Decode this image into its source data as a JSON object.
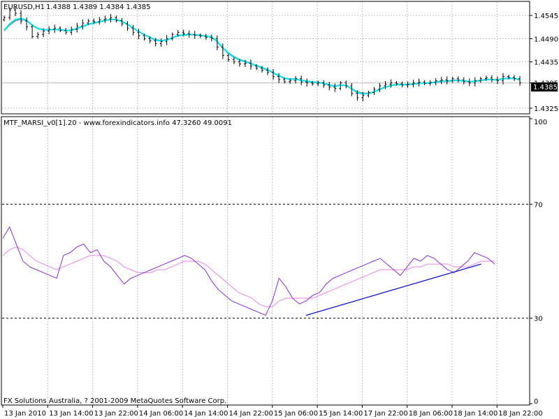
{
  "symbol_label": "EURUSD,H1",
  "ohlc_label": "1.4388 1.4389 1.4384 1.4385",
  "indicator_label": "MTF_MARSI_v0[1].20 - www.forexindicators.info 47.3260 49.0091",
  "copyright": "FX Solutions Australia, ? 2001-2009 MetaQuotes Software Corp.",
  "current_price": "1.4385",
  "colors": {
    "background": "#ffffff",
    "candle": "#000000",
    "ma_fast": "#00e5ee",
    "ma_slow": "#6b6b6b",
    "rsi_line": "#8a2be2",
    "rsi_ma": "#ee82ee",
    "trendline": "#0000cd",
    "grid": "#c0c0c0"
  },
  "chart_data": [
    {
      "type": "candlestick",
      "symbol": "EURUSD",
      "timeframe": "H1",
      "ylim": [
        1.4315,
        1.4575
      ],
      "y_ticks": [
        "1.4545",
        "1.4490",
        "1.4435",
        "1.4385",
        "1.4325"
      ],
      "x_ticks": [
        "13 Jan 2010",
        "13 Jan 14:00",
        "13 Jan 22:00",
        "14 Jan 06:00",
        "14 Jan 14:00",
        "14 Jan 22:00",
        "15 Jan 06:00",
        "15 Jan 14:00",
        "17 Jan 22:00",
        "18 Jan 06:00",
        "18 Jan 14:00",
        "18 Jan 22:00"
      ],
      "grid": true,
      "close": [
        1.454,
        1.4558,
        1.455,
        1.4532,
        1.4518,
        1.4495,
        1.45,
        1.4508,
        1.4512,
        1.4515,
        1.451,
        1.4505,
        1.4512,
        1.452,
        1.4527,
        1.4532,
        1.453,
        1.4535,
        1.4537,
        1.454,
        1.4533,
        1.4525,
        1.4515,
        1.4505,
        1.4497,
        1.449,
        1.4485,
        1.4478,
        1.4483,
        1.449,
        1.45,
        1.4505,
        1.4502,
        1.45,
        1.4498,
        1.4496,
        1.4493,
        1.449,
        1.447,
        1.445,
        1.444,
        1.4435,
        1.443,
        1.4432,
        1.4425,
        1.442,
        1.4415,
        1.441,
        1.44,
        1.4393,
        1.4388,
        1.439,
        1.4395,
        1.4387,
        1.4385,
        1.4383,
        1.4385,
        1.438,
        1.4375,
        1.4372,
        1.4385,
        1.4378,
        1.436,
        1.435,
        1.4355,
        1.4362,
        1.437,
        1.4378,
        1.4382,
        1.4385,
        1.4383,
        1.438,
        1.4382,
        1.4385,
        1.4387,
        1.4384,
        1.4386,
        1.439,
        1.4392,
        1.439,
        1.4395,
        1.4392,
        1.4388,
        1.4385,
        1.439,
        1.4395,
        1.4397,
        1.4393,
        1.439,
        1.44,
        1.4398,
        1.4395,
        1.4385
      ],
      "series": [
        {
          "name": "MA fast",
          "values": [
            1.451,
            1.4525,
            1.4535,
            1.4538,
            1.4533,
            1.4522,
            1.4514,
            1.4511,
            1.4511,
            1.4512,
            1.4511,
            1.4509,
            1.451,
            1.4514,
            1.4519,
            1.4524,
            1.4527,
            1.453,
            1.4533,
            1.4536,
            1.4535,
            1.4531,
            1.4524,
            1.4515,
            1.4507,
            1.4499,
            1.4493,
            1.4486,
            1.4485,
            1.4487,
            1.4492,
            1.4497,
            1.4499,
            1.45,
            1.4499,
            1.4498,
            1.4496,
            1.4494,
            1.4483,
            1.4468,
            1.4455,
            1.4446,
            1.4439,
            1.4436,
            1.4431,
            1.4426,
            1.4421,
            1.4416,
            1.4409,
            1.4402,
            1.4396,
            1.4394,
            1.4394,
            1.4391,
            1.4389,
            1.4387,
            1.4386,
            1.4384,
            1.438,
            1.4377,
            1.438,
            1.4379,
            1.4371,
            1.4362,
            1.4359,
            1.436,
            1.4364,
            1.437,
            1.4375,
            1.4379,
            1.4381,
            1.4381,
            1.4381,
            1.4382,
            1.4384,
            1.4384,
            1.4385,
            1.4387,
            1.4389,
            1.4389,
            1.4391,
            1.4391,
            1.439,
            1.4388,
            1.4389,
            1.4391,
            1.4393,
            1.4393,
            1.4392,
            1.4395,
            1.4396,
            1.4396,
            1.4392
          ]
        },
        {
          "name": "MA slow",
          "values": [
            1.4508,
            1.4522,
            1.4532,
            1.4536,
            1.4532,
            1.4522,
            1.4515,
            1.4512,
            1.4512,
            1.4512,
            1.4511,
            1.4509,
            1.451,
            1.4513,
            1.4518,
            1.4523,
            1.4526,
            1.4529,
            1.4532,
            1.4535,
            1.4534,
            1.453,
            1.4523,
            1.4515,
            1.4507,
            1.45,
            1.4494,
            1.4488,
            1.4486,
            1.4487,
            1.4491,
            1.4496,
            1.4498,
            1.4499,
            1.4498,
            1.4497,
            1.4495,
            1.4493,
            1.4483,
            1.4469,
            1.4457,
            1.4448,
            1.4441,
            1.4437,
            1.4432,
            1.4427,
            1.4422,
            1.4417,
            1.441,
            1.4403,
            1.4397,
            1.4395,
            1.4395,
            1.4392,
            1.439,
            1.4388,
            1.4387,
            1.4385,
            1.4381,
            1.4378,
            1.438,
            1.4379,
            1.4372,
            1.4364,
            1.4361,
            1.4361,
            1.4364,
            1.4369,
            1.4374,
            1.4378,
            1.438,
            1.438,
            1.4381,
            1.4382,
            1.4383,
            1.4384,
            1.4384,
            1.4386,
            1.4388,
            1.4388,
            1.439,
            1.439,
            1.4389,
            1.4388,
            1.4388,
            1.439,
            1.4392,
            1.4392,
            1.4392,
            1.4394,
            1.4395,
            1.4395,
            1.4392
          ]
        }
      ]
    },
    {
      "type": "line",
      "title": "MTF_MARSI_v0[1].20",
      "ylim": [
        0,
        100
      ],
      "y_ticks": [
        "100",
        "70",
        "30",
        "0"
      ],
      "levels": [
        70,
        30
      ],
      "grid": true,
      "series": [
        {
          "name": "RSI",
          "values": [
            58,
            62,
            56,
            50,
            48,
            47,
            46,
            45,
            44,
            52,
            53,
            55,
            56,
            53,
            54,
            50,
            48,
            45,
            42,
            44,
            45,
            46,
            47,
            48,
            49,
            50,
            51,
            52,
            51,
            49,
            47,
            43,
            40,
            38,
            36,
            35,
            34,
            33,
            32,
            31,
            36,
            44,
            41,
            37,
            35,
            36,
            38,
            39,
            42,
            44,
            45,
            46,
            47,
            48,
            49,
            50,
            51,
            49,
            47,
            45,
            48,
            51,
            50,
            52,
            51,
            49,
            47,
            46,
            48,
            50,
            53,
            52,
            51,
            49
          ]
        },
        {
          "name": "RSI MA",
          "values": [
            52,
            54,
            55,
            54,
            52,
            50,
            49,
            48,
            47,
            48,
            49,
            50,
            51,
            52,
            52,
            52,
            51,
            50,
            48,
            47,
            46,
            46,
            46,
            47,
            47,
            48,
            49,
            50,
            50,
            50,
            49,
            47,
            45,
            43,
            41,
            39,
            38,
            37,
            35,
            34,
            34,
            36,
            37,
            37,
            37,
            37,
            37,
            38,
            39,
            40,
            41,
            42,
            43,
            44,
            45,
            46,
            47,
            47,
            47,
            47,
            47,
            48,
            48,
            49,
            49,
            49,
            49,
            48,
            48,
            48,
            49,
            50,
            50,
            50
          ]
        }
      ],
      "trendline": {
        "x": [
          45,
          71
        ],
        "y": [
          31,
          49
        ]
      }
    }
  ]
}
